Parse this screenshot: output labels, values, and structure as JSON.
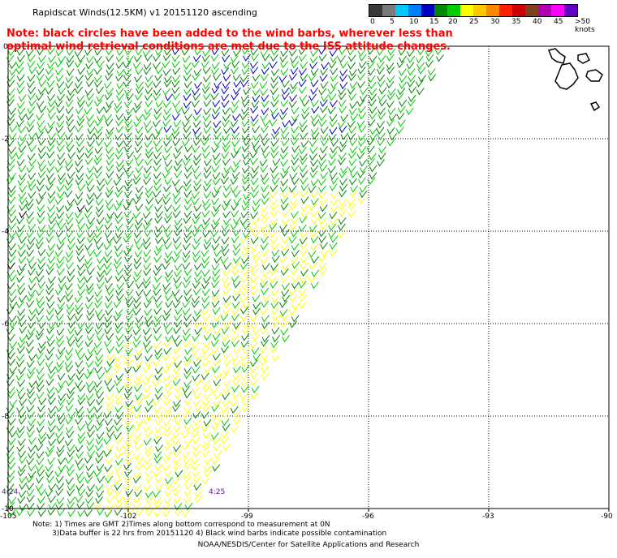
{
  "header": {
    "title": "Rapidscat Winds(12.5KM) v1 20151120 ascending",
    "note": "Note: black circles have been added to the wind barbs, wherever less than optimal wind retrieval conditions are met due to the ISS attitude changes."
  },
  "legend": {
    "colors": [
      "#3a3a3a",
      "#7a7a7a",
      "#00c8ff",
      "#007cff",
      "#0000c0",
      "#008800",
      "#00cc00",
      "#ffff00",
      "#ffc800",
      "#ff8800",
      "#ff2000",
      "#cc0000",
      "#804020",
      "#b000b0",
      "#ff00ff",
      "#6000c0"
    ],
    "labels": [
      "0",
      "5",
      "10",
      "15",
      "20",
      "25",
      "30",
      "35",
      "40",
      "45",
      ">50 knots"
    ]
  },
  "map": {
    "lon_ticks": [
      "-105",
      "-102",
      "-99",
      "-96",
      "-93",
      "-90"
    ],
    "lat_ticks": [
      "0",
      "-2",
      "-4",
      "-6",
      "-8",
      "-10"
    ],
    "time_labels": [
      "4:24",
      "4:25"
    ],
    "barb_colors": {
      "light": "#00cc00",
      "dark": "#008800",
      "yellow": "#ffff00",
      "blue": "#0000c0",
      "black": "#000000"
    }
  },
  "footer": {
    "note_line1": "Note: 1) Times are GMT 2)Times along bottom correspond to measurement at 0N",
    "note_line2": "3)Data buffer is 22 hrs from 20151120 4) Black wind barbs indicate possible contamination",
    "credit": "NOAA/NESDIS/Center for Satellite Applications and Research"
  }
}
